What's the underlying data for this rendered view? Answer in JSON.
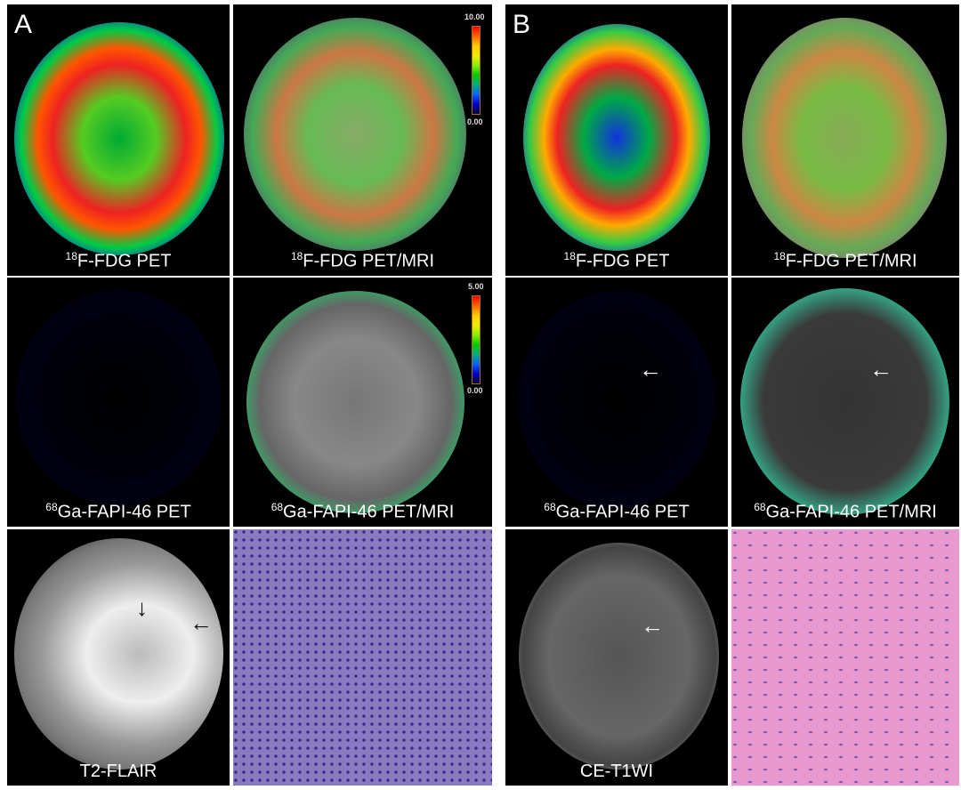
{
  "panels": [
    {
      "letter": "A",
      "labels": {
        "fdg_pet": "F-FDG  PET",
        "fdg_pet_iso": "18",
        "fdg_mri": "F-FDG PET/MRI",
        "fdg_mri_iso": "18",
        "fapi_pet": "Ga-FAPI-46 PET",
        "fapi_pet_iso": "68",
        "fapi_mri": "Ga-FAPI-46 PET/MRI",
        "fapi_mri_iso": "68",
        "mri": "T2-FLAIR"
      },
      "colorbars": [
        {
          "max": "10.00",
          "min": "0.00"
        },
        {
          "max": "5.00",
          "min": "0.00"
        }
      ]
    },
    {
      "letter": "B",
      "labels": {
        "fdg_pet": "F-FDG PET",
        "fdg_pet_iso": "18",
        "fdg_mri": "F-FDG PET/MRI",
        "fdg_mri_iso": "18",
        "fapi_pet": "Ga-FAPI-46 PET",
        "fapi_pet_iso": "68",
        "fapi_mri": "Ga-FAPI-46 PET/MRI",
        "fapi_mri_iso": "68",
        "mri": "CE-T1WI"
      }
    }
  ],
  "colors": {
    "histology_a": "#8a7ac0",
    "histology_b": "#e89ad0"
  }
}
